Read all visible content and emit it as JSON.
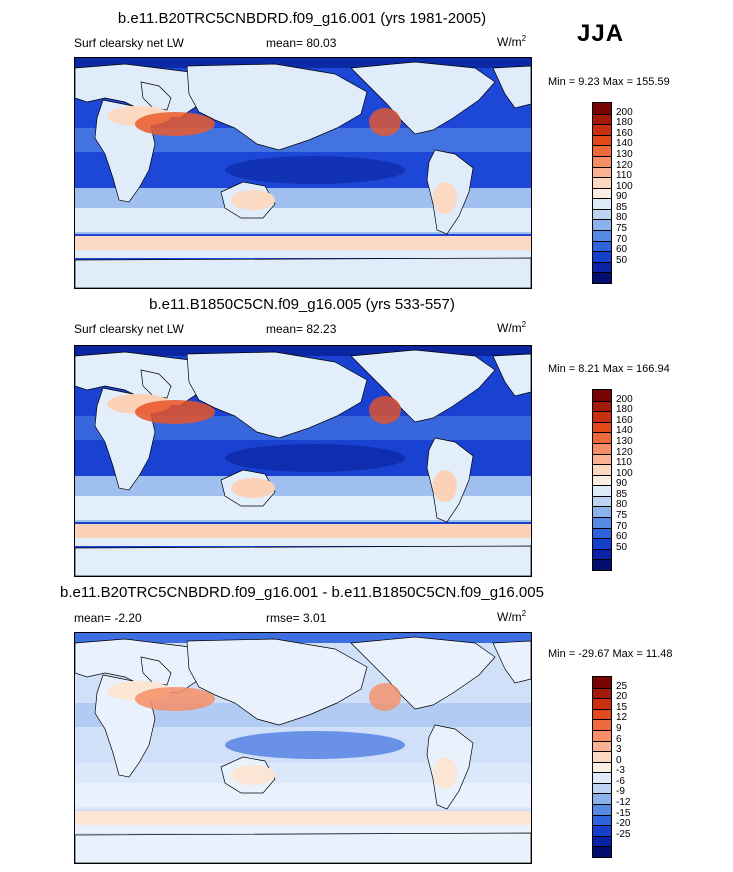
{
  "season": "JJA",
  "panels": [
    {
      "title": "b.e11.B20TRC5CNBDRD.f09_g16.001 (yrs 1981-2005)",
      "left_label": "Surf clearsky net LW",
      "center_label": "mean=  80.03",
      "units_base": "W/m",
      "units_exp": "2",
      "minmax": "Min =   9.23 Max = 155.59",
      "colorbar_ticks": [
        "200",
        "180",
        "160",
        "140",
        "130",
        "120",
        "110",
        "100",
        "90",
        "85",
        "80",
        "75",
        "70",
        "60",
        "50"
      ],
      "colorbar_colors": [
        "#7a0403",
        "#a31a0b",
        "#c9300f",
        "#e2491b",
        "#ef6a3b",
        "#f58e66",
        "#f9b294",
        "#fcd8c0",
        "#fbeee2",
        "#dfeaf9",
        "#bed3f2",
        "#8bb2ea",
        "#5689e3",
        "#2f63db",
        "#1540cc",
        "#0a22a8",
        "#020f6e"
      ],
      "map_colors": {
        "ocean": "#1d47d6",
        "mid": "#4e7ee4",
        "lite": "#9fc0ef",
        "pale": "#e0ecfa",
        "warm": "#fbd9c2",
        "hot": "#ea5a2b",
        "deep": "#0d2aa6"
      }
    },
    {
      "title": "b.e11.B1850C5CN.f09_g16.005 (yrs 533-557)",
      "left_label": "Surf clearsky net LW",
      "center_label": "mean=  82.23",
      "units_base": "W/m",
      "units_exp": "2",
      "minmax": "Min =   8.21 Max = 166.94",
      "colorbar_ticks": [
        "200",
        "180",
        "160",
        "140",
        "130",
        "120",
        "110",
        "100",
        "90",
        "85",
        "80",
        "75",
        "70",
        "60",
        "50"
      ],
      "colorbar_colors": [
        "#7a0403",
        "#a31a0b",
        "#c9300f",
        "#e2491b",
        "#ef6a3b",
        "#f58e66",
        "#f9b294",
        "#fcd8c0",
        "#fbeee2",
        "#dfeaf9",
        "#bed3f2",
        "#8bb2ea",
        "#5689e3",
        "#2f63db",
        "#1540cc",
        "#0a22a8",
        "#020f6e"
      ],
      "map_colors": {
        "ocean": "#1a42d2",
        "mid": "#3f6fe0",
        "lite": "#9fc0ef",
        "pale": "#e3eefb",
        "warm": "#fbd2b8",
        "hot": "#e85327",
        "deep": "#0b25a0"
      }
    },
    {
      "title": "b.e11.B20TRC5CNBDRD.f09_g16.001 - b.e11.B1850C5CN.f09_g16.005",
      "left_label": "mean=  -2.20",
      "center_label": "rmse=   3.01",
      "units_base": "W/m",
      "units_exp": "2",
      "minmax": "Min = -29.67 Max =  11.48",
      "colorbar_ticks": [
        "25",
        "20",
        "15",
        "12",
        "9",
        "6",
        "3",
        "0",
        "-3",
        "-6",
        "-9",
        "-12",
        "-15",
        "-20",
        "-25"
      ],
      "colorbar_colors": [
        "#7a0403",
        "#a31a0b",
        "#c9300f",
        "#e2491b",
        "#ef6a3b",
        "#f58e66",
        "#f9b294",
        "#fcd8c0",
        "#fbeee2",
        "#dfeaf9",
        "#bed3f2",
        "#8bb2ea",
        "#5689e3",
        "#2f63db",
        "#1540cc",
        "#0a22a8",
        "#020f6e"
      ],
      "map_colors": {
        "ocean": "#cfe0f8",
        "mid": "#a9c6f1",
        "lite": "#dbe8fa",
        "pale": "#e9f1fc",
        "warm": "#fbe6d6",
        "hot": "#f58e66",
        "deep": "#3d6fe0"
      }
    }
  ]
}
